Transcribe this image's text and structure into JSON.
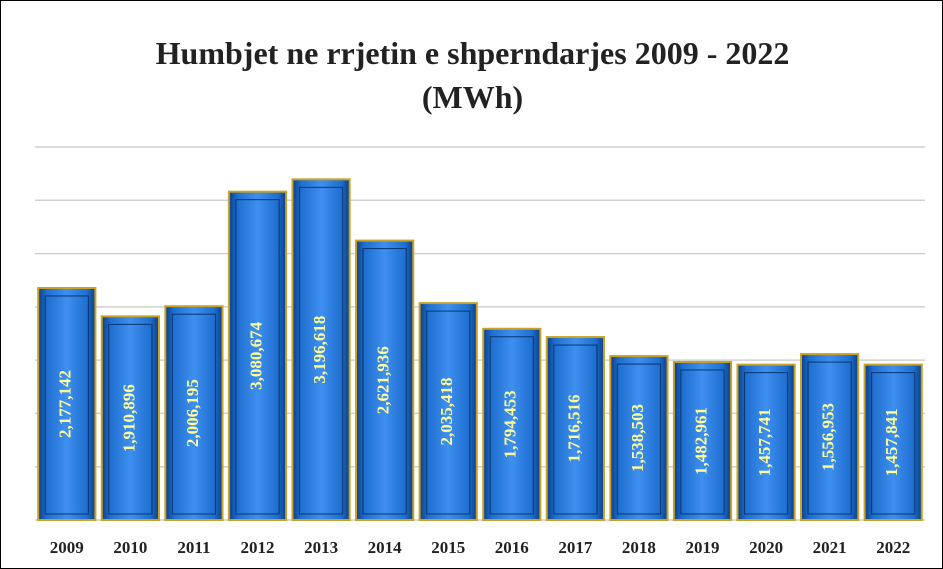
{
  "chart_data": {
    "type": "bar",
    "title": "Humbjet ne rrjetin e shperndarjes 2009 - 2022 (MWh)",
    "categories": [
      "2009",
      "2010",
      "2011",
      "2012",
      "2013",
      "2014",
      "2015",
      "2016",
      "2017",
      "2018",
      "2019",
      "2020",
      "2021",
      "2022"
    ],
    "values": [
      2177142,
      1910896,
      2006195,
      3080674,
      3196618,
      2621936,
      2035418,
      1794453,
      1716516,
      1538503,
      1482961,
      1457741,
      1556953,
      1457841
    ],
    "value_labels": [
      "2,177,142",
      "1,910,896",
      "2,006,195",
      "3,080,674",
      "3,196,618",
      "2,621,936",
      "2,035,418",
      "1,794,453",
      "1,716,516",
      "1,538,503",
      "1,482,961",
      "1,457,741",
      "1,556,953",
      "1,457,841"
    ],
    "color": "#1f6fd0",
    "ylim": [
      0,
      3500000
    ],
    "yticks": [
      0,
      500000,
      1000000,
      1500000,
      2000000,
      2500000,
      3000000,
      3500000
    ],
    "grid": true
  }
}
